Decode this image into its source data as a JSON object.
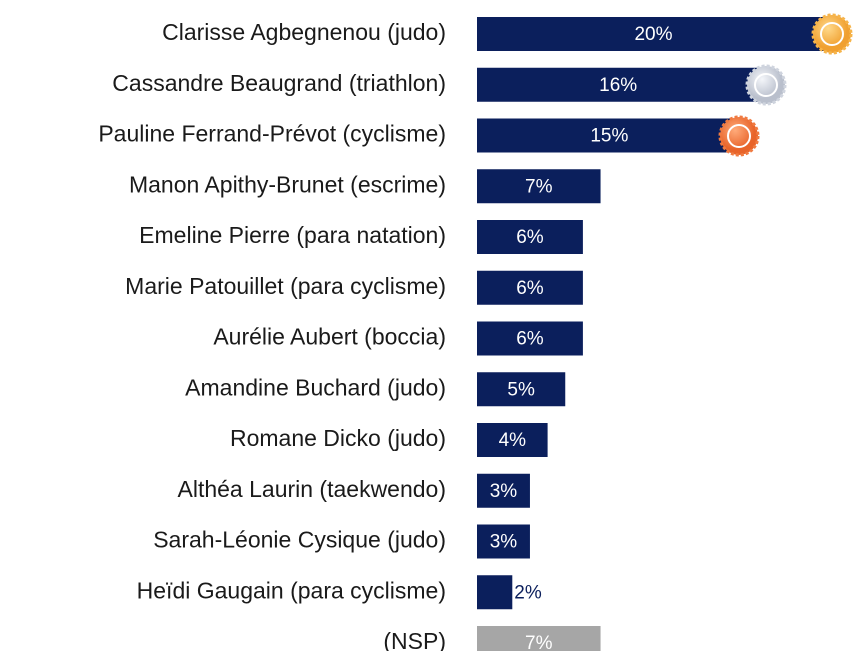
{
  "chart_data": {
    "type": "bar",
    "orientation": "horizontal",
    "categories": [
      "Clarisse Agbegnenou (judo)",
      "Cassandre Beaugrand (triathlon)",
      "Pauline Ferrand-Prévot (cyclisme)",
      "Manon Apithy-Brunet (escrime)",
      "Emeline Pierre (para natation)",
      "Marie Patouillet (para cyclisme)",
      "Aurélie Aubert (boccia)",
      "Amandine Buchard (judo)",
      "Romane Dicko (judo)",
      "Althéa Laurin (taekwendo)",
      "Sarah-Léonie Cysique (judo)",
      "Heïdi Gaugain (para cyclisme)",
      "(NSP)"
    ],
    "values": [
      20,
      16,
      15,
      7,
      6,
      6,
      6,
      5,
      4,
      3,
      3,
      2,
      7
    ],
    "value_labels": [
      "20%",
      "16%",
      "15%",
      "7%",
      "6%",
      "6%",
      "6%",
      "5%",
      "4%",
      "3%",
      "3%",
      "2%",
      "7%"
    ],
    "colors": [
      "#0b1f5c",
      "#0b1f5c",
      "#0b1f5c",
      "#0b1f5c",
      "#0b1f5c",
      "#0b1f5c",
      "#0b1f5c",
      "#0b1f5c",
      "#0b1f5c",
      "#0b1f5c",
      "#0b1f5c",
      "#0b1f5c",
      "#a6a6a6"
    ]
  }
}
